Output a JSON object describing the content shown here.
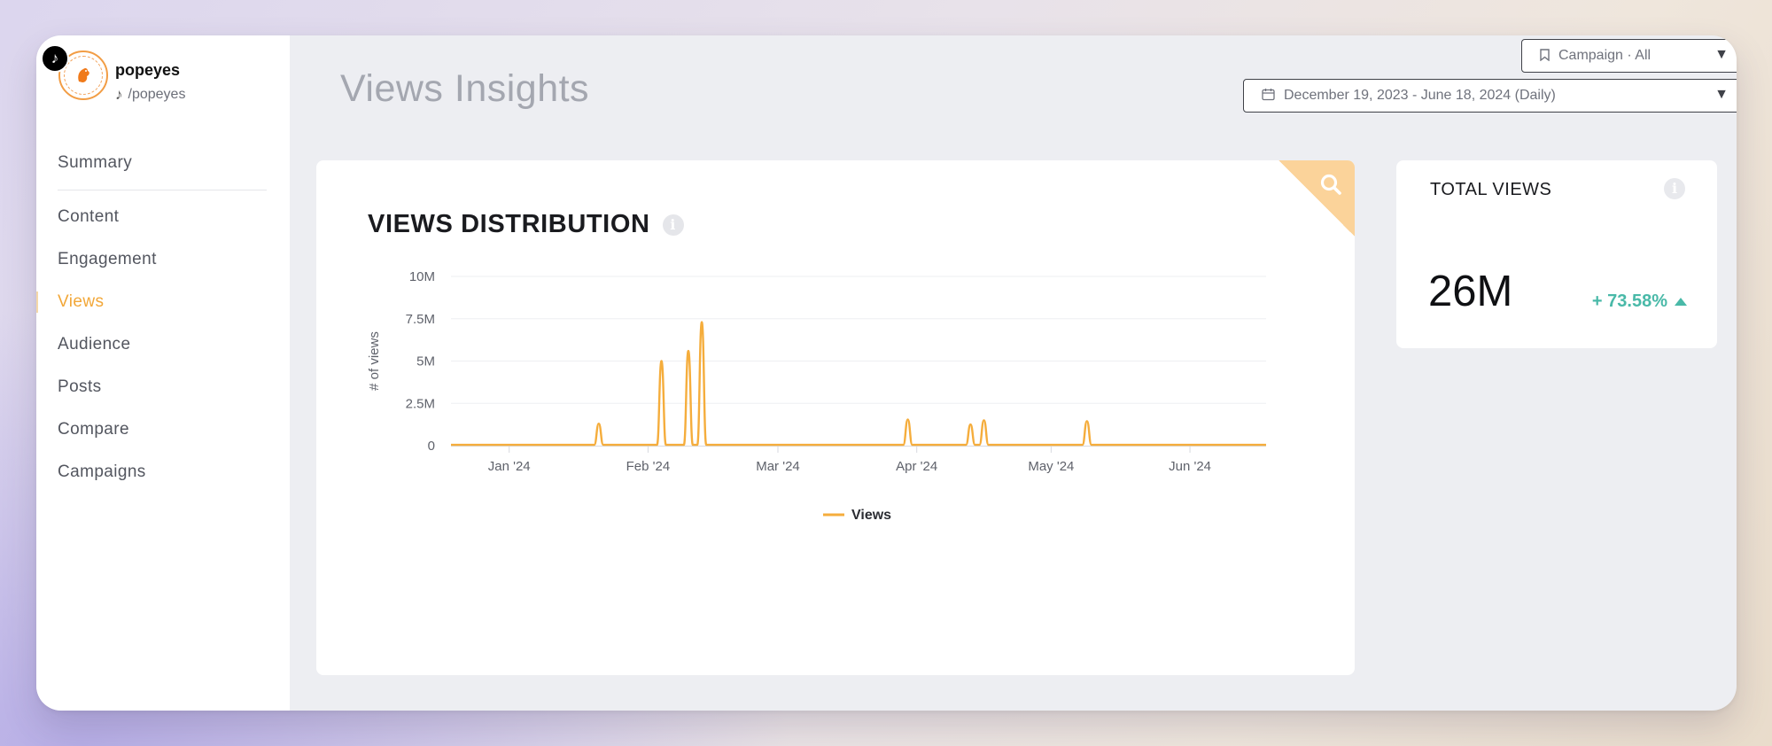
{
  "colors": {
    "accent": "#f2a738",
    "line": "#f5ad3c",
    "positive": "#49b9a8",
    "title_muted": "#a4a7b0"
  },
  "profile": {
    "name": "popeyes",
    "handle": "/popeyes",
    "platform_icon": "tiktok-icon",
    "avatar_icon": "popeyes-logo"
  },
  "sidebar": {
    "items": [
      {
        "label": "Summary",
        "active": false
      },
      {
        "label": "Content",
        "active": false
      },
      {
        "label": "Engagement",
        "active": false
      },
      {
        "label": "Views",
        "active": true
      },
      {
        "label": "Audience",
        "active": false
      },
      {
        "label": "Posts",
        "active": false
      },
      {
        "label": "Compare",
        "active": false
      },
      {
        "label": "Campaigns",
        "active": false
      }
    ]
  },
  "header": {
    "title": "Views Insights",
    "campaign_dropdown": {
      "label": "Campaign · All",
      "icon": "bookmark-icon"
    },
    "date_dropdown": {
      "label": "December 19, 2023 - June 18, 2024 (Daily)",
      "icon": "calendar-icon"
    }
  },
  "chart_card": {
    "title": "VIEWS DISTRIBUTION",
    "zoom_icon": "search-icon"
  },
  "total_card": {
    "title": "TOTAL VIEWS",
    "value": "26M",
    "change": "+ 73.58%"
  },
  "chart_data": {
    "type": "line",
    "title": "VIEWS DISTRIBUTION",
    "ylabel": "# of views",
    "xlabel": "",
    "ylim": [
      0,
      10000000
    ],
    "yticks": [
      {
        "value": 0,
        "label": "0"
      },
      {
        "value": 2500000,
        "label": "2.5M"
      },
      {
        "value": 5000000,
        "label": "5M"
      },
      {
        "value": 7500000,
        "label": "7.5M"
      },
      {
        "value": 10000000,
        "label": "10M"
      }
    ],
    "xlim": [
      "2023-12-19",
      "2024-06-18"
    ],
    "xticks": [
      {
        "date": "2024-01-01",
        "label": "Jan '24"
      },
      {
        "date": "2024-02-01",
        "label": "Feb '24"
      },
      {
        "date": "2024-03-01",
        "label": "Mar '24"
      },
      {
        "date": "2024-04-01",
        "label": "Apr '24"
      },
      {
        "date": "2024-05-01",
        "label": "May '24"
      },
      {
        "date": "2024-06-01",
        "label": "Jun '24"
      }
    ],
    "grid": true,
    "legend": "bottom",
    "series": [
      {
        "name": "Views",
        "points": [
          {
            "date": "2023-12-19",
            "value": 50000
          },
          {
            "date": "2024-01-20",
            "value": 50000
          },
          {
            "date": "2024-01-21",
            "value": 1300000
          },
          {
            "date": "2024-01-22",
            "value": 50000
          },
          {
            "date": "2024-02-03",
            "value": 50000
          },
          {
            "date": "2024-02-04",
            "value": 5000000
          },
          {
            "date": "2024-02-05",
            "value": 50000
          },
          {
            "date": "2024-02-09",
            "value": 50000
          },
          {
            "date": "2024-02-10",
            "value": 5600000
          },
          {
            "date": "2024-02-11",
            "value": 50000
          },
          {
            "date": "2024-02-12",
            "value": 50000
          },
          {
            "date": "2024-02-13",
            "value": 7300000
          },
          {
            "date": "2024-02-14",
            "value": 50000
          },
          {
            "date": "2024-03-29",
            "value": 50000
          },
          {
            "date": "2024-03-30",
            "value": 1550000
          },
          {
            "date": "2024-03-31",
            "value": 50000
          },
          {
            "date": "2024-04-12",
            "value": 50000
          },
          {
            "date": "2024-04-13",
            "value": 1250000
          },
          {
            "date": "2024-04-14",
            "value": 50000
          },
          {
            "date": "2024-04-15",
            "value": 50000
          },
          {
            "date": "2024-04-16",
            "value": 1500000
          },
          {
            "date": "2024-04-17",
            "value": 50000
          },
          {
            "date": "2024-05-08",
            "value": 50000
          },
          {
            "date": "2024-05-09",
            "value": 1450000
          },
          {
            "date": "2024-05-10",
            "value": 50000
          },
          {
            "date": "2024-06-18",
            "value": 50000
          }
        ]
      }
    ]
  }
}
